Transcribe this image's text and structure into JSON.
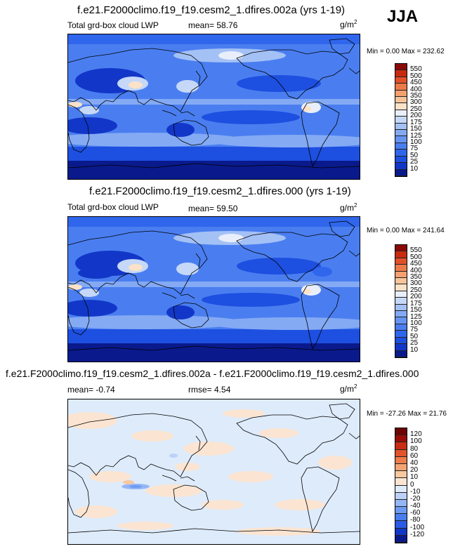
{
  "season": "JJA",
  "panels": [
    {
      "title": "f.e21.F2000climo.f19_f19.cesm2_1.dfires.002a (yrs 1-19)",
      "variable": "Total grd-box cloud LWP",
      "stat": "mean=  58.76",
      "units": "g/m",
      "units_exp": "2",
      "minmax": "Min =   0.00 Max = 232.62"
    },
    {
      "title": "f.e21.F2000climo.f19_f19.cesm2_1.dfires.000 (yrs 1-19)",
      "variable": "Total grd-box cloud LWP",
      "stat": "mean=  59.50",
      "units": "g/m",
      "units_exp": "2",
      "minmax": "Min =   0.00 Max = 241.64"
    },
    {
      "title": "f.e21.F2000climo.f19_f19.cesm2_1.dfires.002a - f.e21.F2000climo.f19_f19.cesm2_1.dfires.000",
      "variable": "mean=  -0.74",
      "stat": "rmse=   4.54",
      "units": "g/m",
      "units_exp": "2",
      "minmax": "Min = -27.26 Max =  21.76"
    }
  ],
  "chart_data": [
    {
      "type": "heatmap",
      "title": "f.e21.F2000climo.f19_f19.cesm2_1.dfires.002a (yrs 1-19)",
      "variable": "Total grd-box cloud LWP",
      "units": "g/m2",
      "mean": 58.76,
      "min": 0.0,
      "max": 232.62,
      "levels": [
        10,
        25,
        50,
        75,
        100,
        125,
        150,
        175,
        200,
        250,
        300,
        350,
        400,
        450,
        500,
        550
      ],
      "colors": [
        "#0a1a8c",
        "#1237c8",
        "#1d4fe0",
        "#2f66ec",
        "#4a7ef0",
        "#6694f2",
        "#84aaf4",
        "#a4c1f6",
        "#c6d8f8",
        "#e8eefa",
        "#fbe2c8",
        "#f8c49a",
        "#f4a070",
        "#ee7a4a",
        "#e2502a",
        "#c82a10",
        "#8c0808"
      ]
    },
    {
      "type": "heatmap",
      "title": "f.e21.F2000climo.f19_f19.cesm2_1.dfires.000 (yrs 1-19)",
      "variable": "Total grd-box cloud LWP",
      "units": "g/m2",
      "mean": 59.5,
      "min": 0.0,
      "max": 241.64,
      "levels": [
        10,
        25,
        50,
        75,
        100,
        125,
        150,
        175,
        200,
        250,
        300,
        350,
        400,
        450,
        500,
        550
      ],
      "colors": [
        "#0a1a8c",
        "#1237c8",
        "#1d4fe0",
        "#2f66ec",
        "#4a7ef0",
        "#6694f2",
        "#84aaf4",
        "#a4c1f6",
        "#c6d8f8",
        "#e8eefa",
        "#fbe2c8",
        "#f8c49a",
        "#f4a070",
        "#ee7a4a",
        "#e2502a",
        "#c82a10",
        "#8c0808"
      ]
    },
    {
      "type": "heatmap",
      "title": "f.e21.F2000climo.f19_f19.cesm2_1.dfires.002a - f.e21.F2000climo.f19_f19.cesm2_1.dfires.000",
      "units": "g/m2",
      "mean": -0.74,
      "rmse": 4.54,
      "min": -27.26,
      "max": 21.76,
      "levels": [
        -120,
        -100,
        -80,
        -60,
        -40,
        -20,
        -10,
        0,
        10,
        20,
        40,
        60,
        80,
        100,
        120
      ],
      "colors": [
        "#0a1a8c",
        "#1237c8",
        "#2a5ae6",
        "#4a7ef0",
        "#6e9af2",
        "#94b6f5",
        "#bcd0f8",
        "#deebfb",
        "#fbe5d2",
        "#f8c8a0",
        "#f4a474",
        "#ee7c4c",
        "#e2542c",
        "#c82c12",
        "#9a0c08",
        "#6c0404"
      ]
    }
  ]
}
